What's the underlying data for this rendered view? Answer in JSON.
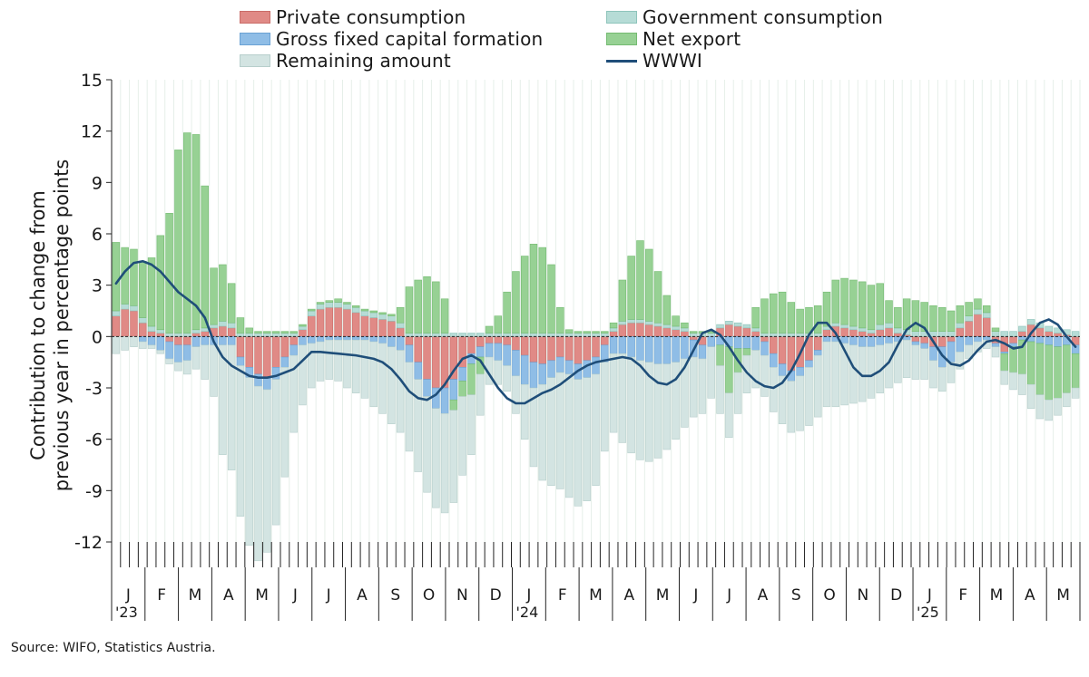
{
  "legend": {
    "items": [
      {
        "key": "private",
        "label": "Private consumption",
        "color": "#e08a86",
        "border": "#c96c68",
        "kind": "box"
      },
      {
        "key": "gov",
        "label": "Government consumption",
        "color": "#b6dcd6",
        "border": "#8ec4bb",
        "kind": "box"
      },
      {
        "key": "gfcf",
        "label": "Gross fixed capital formation",
        "color": "#8fbde6",
        "border": "#6aa2d4",
        "kind": "box"
      },
      {
        "key": "netexp",
        "label": "Net export",
        "color": "#97d194",
        "border": "#74bb71",
        "kind": "box"
      },
      {
        "key": "remain",
        "label": "Remaining amount",
        "color": "#d3e4e2",
        "border": "#b7cfcc",
        "kind": "box"
      },
      {
        "key": "wwwi",
        "label": "WWWI",
        "color": "#1f4e79",
        "kind": "line"
      }
    ]
  },
  "axis": {
    "ylabel": "Contribution to change from previous year in percentage points",
    "ylabel_lines": [
      "Contribution to change from",
      "previous year in percentage points"
    ]
  },
  "source": "Source: WIFO, Statistics Austria.",
  "chart_data": {
    "type": "bar",
    "stacked": true,
    "ylim": [
      -12,
      15
    ],
    "yticks": [
      -12,
      -9,
      -6,
      -3,
      0,
      3,
      6,
      9,
      12,
      15
    ],
    "grid": "vertical",
    "legend_position": "top",
    "months": [
      "J",
      "F",
      "M",
      "A",
      "M",
      "J",
      "J",
      "A",
      "S",
      "O",
      "N",
      "D",
      "J",
      "F",
      "M",
      "A",
      "M",
      "J",
      "J",
      "A",
      "S",
      "O",
      "N",
      "D",
      "J",
      "F",
      "M",
      "A",
      "M"
    ],
    "year_labels": [
      {
        "month_index": 0,
        "label": "'23"
      },
      {
        "month_index": 12,
        "label": "'24"
      },
      {
        "month_index": 24,
        "label": "'25"
      }
    ],
    "weeks": 109,
    "series": [
      {
        "name": "Private consumption",
        "key": "private",
        "values": [
          1.2,
          1.6,
          1.5,
          0.8,
          0.3,
          0.2,
          -0.3,
          -0.5,
          -0.5,
          0.2,
          0.3,
          0.5,
          0.6,
          0.5,
          -1.2,
          -1.8,
          -2.2,
          -2.4,
          -1.8,
          -1.2,
          -0.5,
          0.4,
          1.2,
          1.6,
          1.7,
          1.7,
          1.6,
          1.4,
          1.2,
          1.1,
          1.0,
          0.9,
          0.5,
          -0.5,
          -1.5,
          -2.5,
          -3.0,
          -3.0,
          -2.5,
          -1.8,
          -1.0,
          -0.6,
          -0.4,
          -0.4,
          -0.5,
          -0.8,
          -1.1,
          -1.5,
          -1.6,
          -1.4,
          -1.2,
          -1.4,
          -1.6,
          -1.4,
          -1.2,
          -0.5,
          0.3,
          0.7,
          0.8,
          0.8,
          0.7,
          0.6,
          0.5,
          0.4,
          0.3,
          -0.2,
          -0.5,
          0.0,
          0.5,
          0.7,
          0.6,
          0.5,
          0.3,
          -0.3,
          -1.0,
          -1.6,
          -2.0,
          -1.8,
          -1.4,
          -0.8,
          0.4,
          0.6,
          0.5,
          0.4,
          0.3,
          0.2,
          0.4,
          0.5,
          0.2,
          0.1,
          -0.3,
          -0.4,
          -0.6,
          -0.6,
          -0.3,
          0.5,
          0.9,
          1.3,
          1.1,
          -0.4,
          -0.9,
          -0.4,
          0.3,
          0.7,
          0.5,
          0.3,
          0.2,
          0.1,
          -0.5
        ]
      },
      {
        "name": "Government consumption",
        "key": "gov",
        "values": [
          0.3,
          0.3,
          0.3,
          0.3,
          0.3,
          0.2,
          0.2,
          0.2,
          0.2,
          0.2,
          0.2,
          0.2,
          0.3,
          0.3,
          0.2,
          0.2,
          0.2,
          0.2,
          0.2,
          0.2,
          0.2,
          0.2,
          0.3,
          0.3,
          0.3,
          0.3,
          0.3,
          0.3,
          0.3,
          0.3,
          0.3,
          0.3,
          0.3,
          0.2,
          0.2,
          0.2,
          0.2,
          0.2,
          0.2,
          0.2,
          0.2,
          0.2,
          0.2,
          0.2,
          0.2,
          0.2,
          0.2,
          0.2,
          0.2,
          0.2,
          0.2,
          0.2,
          0.2,
          0.2,
          0.2,
          0.2,
          0.2,
          0.2,
          0.2,
          0.2,
          0.2,
          0.2,
          0.2,
          0.2,
          0.2,
          0.2,
          0.2,
          0.2,
          0.2,
          0.2,
          0.2,
          0.2,
          0.2,
          0.2,
          0.2,
          0.2,
          0.2,
          0.2,
          0.2,
          0.2,
          0.2,
          0.2,
          0.2,
          0.2,
          0.2,
          0.2,
          0.3,
          0.3,
          0.3,
          0.3,
          0.3,
          0.3,
          0.3,
          0.3,
          0.3,
          0.3,
          0.3,
          0.3,
          0.3,
          0.3,
          0.3,
          0.3,
          0.3,
          0.3,
          0.3,
          0.3,
          0.3,
          0.3,
          0.3
        ]
      },
      {
        "name": "Gross fixed capital formation",
        "key": "gfcf",
        "values": [
          0.0,
          0.0,
          0.0,
          -0.3,
          -0.5,
          -0.8,
          -1.0,
          -1.0,
          -0.9,
          -0.6,
          -0.5,
          -0.5,
          -0.5,
          -0.5,
          -0.5,
          -0.6,
          -0.7,
          -0.7,
          -0.7,
          -0.6,
          -0.6,
          -0.5,
          -0.4,
          -0.3,
          -0.2,
          -0.2,
          -0.2,
          -0.2,
          -0.2,
          -0.3,
          -0.4,
          -0.6,
          -0.8,
          -1.0,
          -1.0,
          -1.0,
          -1.2,
          -1.5,
          -1.2,
          -0.8,
          -0.6,
          -0.6,
          -0.8,
          -1.0,
          -1.2,
          -1.5,
          -1.7,
          -1.5,
          -1.2,
          -1.0,
          -0.9,
          -0.8,
          -0.9,
          -1.0,
          -1.0,
          -1.0,
          -1.0,
          -1.0,
          -1.2,
          -1.4,
          -1.5,
          -1.6,
          -1.6,
          -1.5,
          -1.3,
          -1.0,
          -0.8,
          -0.6,
          -0.5,
          -0.6,
          -0.7,
          -0.7,
          -0.8,
          -0.8,
          -0.8,
          -0.7,
          -0.6,
          -0.5,
          -0.4,
          -0.3,
          -0.3,
          -0.3,
          -0.4,
          -0.5,
          -0.6,
          -0.6,
          -0.5,
          -0.4,
          -0.3,
          -0.2,
          -0.2,
          -0.3,
          -0.8,
          -1.2,
          -1.2,
          -0.9,
          -0.5,
          -0.3,
          -0.2,
          -0.2,
          -0.1,
          -0.2,
          -0.2,
          -0.3,
          -0.4,
          -0.5,
          -0.6,
          -0.5,
          -0.5
        ]
      },
      {
        "name": "Net export",
        "key": "netexp",
        "values": [
          4.0,
          3.3,
          3.3,
          3.3,
          4.0,
          5.5,
          7.0,
          10.7,
          11.7,
          11.4,
          8.3,
          3.3,
          3.3,
          2.3,
          0.9,
          0.3,
          0.1,
          0.1,
          0.1,
          0.1,
          0.1,
          0.1,
          0.1,
          0.1,
          0.1,
          0.2,
          0.1,
          0.1,
          0.1,
          0.1,
          0.1,
          0.1,
          0.9,
          2.7,
          3.1,
          3.3,
          3.0,
          2.0,
          -0.6,
          -0.9,
          -1.8,
          -1.0,
          0.4,
          1.0,
          2.4,
          3.6,
          4.5,
          5.2,
          5.0,
          4.0,
          1.5,
          0.2,
          0.1,
          0.1,
          0.1,
          0.1,
          0.3,
          2.4,
          3.7,
          4.6,
          4.2,
          3.0,
          1.7,
          0.6,
          0.3,
          0.1,
          0.1,
          0.1,
          -1.2,
          -2.7,
          -1.4,
          -0.4,
          1.2,
          2.0,
          2.3,
          2.4,
          1.8,
          1.4,
          1.5,
          1.6,
          2.0,
          2.5,
          2.7,
          2.7,
          2.7,
          2.6,
          2.4,
          1.3,
          1.2,
          1.8,
          1.8,
          1.7,
          1.5,
          1.4,
          1.2,
          1.0,
          0.8,
          0.6,
          0.4,
          0.2,
          -1.0,
          -1.5,
          -2.0,
          -2.5,
          -3.0,
          -3.2,
          -3.0,
          -2.8,
          -2.0
        ]
      },
      {
        "name": "Remaining amount",
        "key": "remain",
        "values": [
          -1.0,
          -0.8,
          -0.6,
          -0.4,
          -0.2,
          -0.2,
          -0.3,
          -0.5,
          -0.8,
          -1.3,
          -2.0,
          -3.0,
          -6.4,
          -7.3,
          -8.8,
          -9.8,
          -10.2,
          -9.5,
          -8.5,
          -6.4,
          -4.5,
          -3.5,
          -2.6,
          -2.3,
          -2.3,
          -2.4,
          -2.8,
          -3.1,
          -3.4,
          -3.8,
          -4.1,
          -4.5,
          -4.8,
          -5.2,
          -5.4,
          -5.6,
          -5.8,
          -5.8,
          -5.4,
          -4.6,
          -3.5,
          -2.4,
          -1.6,
          -1.4,
          -1.5,
          -2.2,
          -3.2,
          -4.6,
          -5.6,
          -6.3,
          -6.8,
          -7.2,
          -7.4,
          -7.2,
          -6.5,
          -5.2,
          -4.6,
          -5.2,
          -5.6,
          -5.8,
          -5.8,
          -5.5,
          -5.0,
          -4.5,
          -4.0,
          -3.5,
          -3.2,
          -3.0,
          -2.8,
          -2.6,
          -2.4,
          -2.2,
          -2.2,
          -2.4,
          -2.6,
          -2.8,
          -3.0,
          -3.2,
          -3.4,
          -3.6,
          -3.8,
          -3.8,
          -3.6,
          -3.4,
          -3.2,
          -3.0,
          -2.8,
          -2.6,
          -2.4,
          -2.2,
          -2.0,
          -1.8,
          -1.6,
          -1.4,
          -1.2,
          -1.0,
          -0.8,
          -0.6,
          -0.5,
          -0.6,
          -0.8,
          -1.0,
          -1.2,
          -1.4,
          -1.4,
          -1.2,
          -1.0,
          -0.8,
          -0.6
        ]
      },
      {
        "name": "WWWI",
        "key": "wwwi",
        "type": "line",
        "values": [
          3.1,
          3.8,
          4.3,
          4.4,
          4.2,
          3.8,
          3.2,
          2.6,
          2.2,
          1.8,
          1.1,
          -0.3,
          -1.2,
          -1.7,
          -2.0,
          -2.3,
          -2.4,
          -2.4,
          -2.3,
          -2.1,
          -1.9,
          -1.4,
          -0.9,
          -0.9,
          -0.95,
          -1.0,
          -1.05,
          -1.1,
          -1.2,
          -1.3,
          -1.5,
          -1.9,
          -2.5,
          -3.2,
          -3.6,
          -3.7,
          -3.4,
          -2.8,
          -2.0,
          -1.3,
          -1.1,
          -1.4,
          -2.2,
          -3.0,
          -3.6,
          -3.9,
          -3.9,
          -3.6,
          -3.3,
          -3.1,
          -2.8,
          -2.4,
          -2.0,
          -1.7,
          -1.5,
          -1.4,
          -1.3,
          -1.2,
          -1.3,
          -1.7,
          -2.3,
          -2.7,
          -2.8,
          -2.5,
          -1.8,
          -0.8,
          0.2,
          0.4,
          0.1,
          -0.6,
          -1.4,
          -2.1,
          -2.6,
          -2.9,
          -3.0,
          -2.7,
          -2.0,
          -1.0,
          0.1,
          0.8,
          0.8,
          0.2,
          -0.8,
          -1.8,
          -2.3,
          -2.3,
          -2.0,
          -1.5,
          -0.5,
          0.4,
          0.8,
          0.5,
          -0.3,
          -1.1,
          -1.6,
          -1.7,
          -1.4,
          -0.8,
          -0.3,
          -0.2,
          -0.4,
          -0.7,
          -0.6,
          0.2,
          0.8,
          1.0,
          0.7,
          0.0,
          -0.6
        ]
      }
    ]
  }
}
